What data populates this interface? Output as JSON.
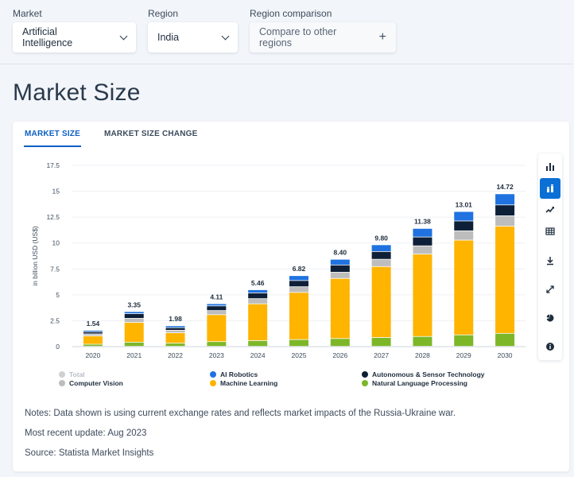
{
  "filters": {
    "market": {
      "label": "Market",
      "value": "Artificial Intelligence"
    },
    "region": {
      "label": "Region",
      "value": "India"
    },
    "comparison": {
      "label": "Region comparison",
      "value": "Compare to other regions"
    }
  },
  "page_title": "Market Size",
  "tabs": [
    {
      "label": "MARKET SIZE",
      "active": true
    },
    {
      "label": "MARKET SIZE CHANGE",
      "active": false
    }
  ],
  "sidebar": [
    {
      "icon": "bar-chart-icon"
    },
    {
      "icon": "stacked-bar-chart-icon"
    },
    {
      "icon": "line-chart-icon"
    },
    {
      "icon": "table-icon"
    },
    {
      "icon": "download-icon"
    },
    {
      "icon": "fullscreen-icon"
    },
    {
      "icon": "pie-chart-icon"
    },
    {
      "icon": "info-icon"
    }
  ],
  "notes": {
    "note": "Notes: Data shown is using current exchange rates and reflects market impacts of the Russia-Ukraine war.",
    "update": "Most recent update: Aug 2023",
    "source": "Source: Statista Market Insights"
  },
  "chart_data": {
    "type": "bar",
    "stacked": true,
    "title": "",
    "xlabel": "",
    "ylabel": "in billion USD (US$)",
    "ylim": [
      0,
      17.5
    ],
    "yticks": [
      "0",
      "2.5",
      "5",
      "7.5",
      "10",
      "12.5",
      "15",
      "17.5"
    ],
    "categories": [
      "2020",
      "2021",
      "2022",
      "2023",
      "2024",
      "2025",
      "2026",
      "2027",
      "2028",
      "2029",
      "2030"
    ],
    "totals": [
      "1.54",
      "3.35",
      "1.98",
      "4.11",
      "5.46",
      "6.82",
      "8.40",
      "9.80",
      "11.38",
      "13.01",
      "14.72"
    ],
    "series": [
      {
        "name": "Natural Language Processing",
        "color": "#7db728",
        "values": [
          0.2,
          0.4,
          0.3,
          0.45,
          0.55,
          0.65,
          0.75,
          0.85,
          0.95,
          1.1,
          1.25
        ]
      },
      {
        "name": "Machine Learning",
        "color": "#ffb400",
        "values": [
          0.8,
          1.9,
          1.0,
          2.6,
          3.55,
          4.55,
          5.8,
          6.85,
          7.95,
          9.15,
          10.35
        ]
      },
      {
        "name": "Computer Vision",
        "color": "#bdbdbd",
        "values": [
          0.2,
          0.4,
          0.25,
          0.4,
          0.5,
          0.55,
          0.6,
          0.7,
          0.8,
          0.9,
          1.0
        ]
      },
      {
        "name": "Autonomous & Sensor Technology",
        "color": "#0e2038",
        "values": [
          0.2,
          0.45,
          0.25,
          0.45,
          0.55,
          0.6,
          0.7,
          0.75,
          0.85,
          0.95,
          1.05
        ]
      },
      {
        "name": "AI Robotics",
        "color": "#1f72e0",
        "values": [
          0.14,
          0.2,
          0.18,
          0.21,
          0.31,
          0.47,
          0.55,
          0.65,
          0.83,
          0.91,
          1.07
        ]
      }
    ],
    "legend": [
      {
        "name": "Total",
        "color": "#d0d0d0",
        "muted": true
      },
      {
        "name": "AI Robotics",
        "color": "#1f72e0",
        "muted": false
      },
      {
        "name": "Autonomous & Sensor Technology",
        "color": "#0e2038",
        "muted": false
      },
      {
        "name": "Computer Vision",
        "color": "#bdbdbd",
        "muted": false
      },
      {
        "name": "Machine Learning",
        "color": "#ffb400",
        "muted": false
      },
      {
        "name": "Natural Language Processing",
        "color": "#7db728",
        "muted": false
      }
    ],
    "legend_position": "bottom"
  }
}
